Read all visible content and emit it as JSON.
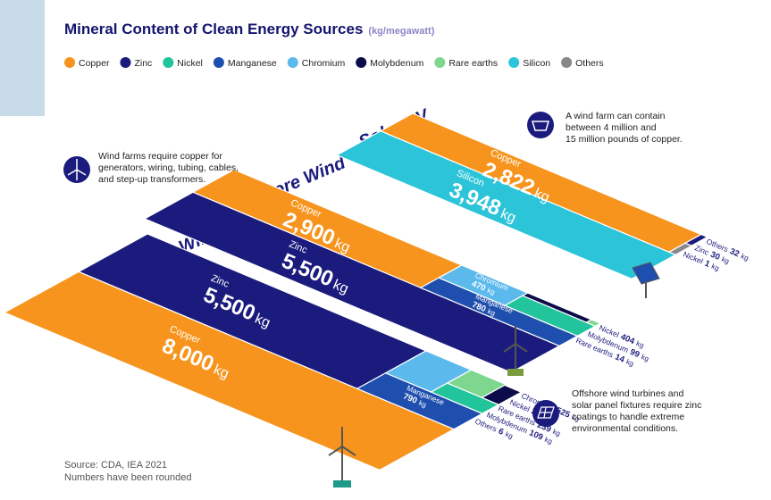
{
  "title": "Mineral Content of Clean Energy Sources",
  "unit": "(kg/megawatt)",
  "legend": [
    {
      "name": "Copper",
      "color": "#f7941d"
    },
    {
      "name": "Zinc",
      "color": "#1b1b7e"
    },
    {
      "name": "Nickel",
      "color": "#22c49c"
    },
    {
      "name": "Manganese",
      "color": "#1f4fae"
    },
    {
      "name": "Chromium",
      "color": "#5cb9ec"
    },
    {
      "name": "Molybdenum",
      "color": "#0c0c4a"
    },
    {
      "name": "Rare earths",
      "color": "#7fd68f"
    },
    {
      "name": "Silicon",
      "color": "#2bc4d8"
    },
    {
      "name": "Others",
      "color": "#888888"
    }
  ],
  "sources": [
    {
      "name": "Offshore Wind",
      "minerals": [
        {
          "name": "Copper",
          "value": 8000,
          "label": "8,000",
          "unit": "kg"
        },
        {
          "name": "Zinc",
          "value": 5500,
          "label": "5,500",
          "unit": "kg"
        },
        {
          "name": "Manganese",
          "value": 790,
          "unit": "kg"
        },
        {
          "name": "Chromium",
          "value": 525,
          "unit": "kg"
        },
        {
          "name": "Nickel",
          "value": 240,
          "unit": "kg"
        },
        {
          "name": "Rare earths",
          "value": 239,
          "unit": "kg"
        },
        {
          "name": "Molybdenum",
          "value": 109,
          "unit": "kg"
        },
        {
          "name": "Others",
          "value": 6,
          "unit": "kg"
        }
      ]
    },
    {
      "name": "Onshore Wind",
      "minerals": [
        {
          "name": "Zinc",
          "value": 5500,
          "label": "5,500",
          "unit": "kg"
        },
        {
          "name": "Copper",
          "value": 2900,
          "label": "2,900",
          "unit": "kg"
        },
        {
          "name": "Manganese",
          "value": 780,
          "unit": "kg"
        },
        {
          "name": "Chromium",
          "value": 470,
          "unit": "kg"
        },
        {
          "name": "Nickel",
          "value": 404,
          "unit": "kg"
        },
        {
          "name": "Molybdenum",
          "value": 99,
          "unit": "kg"
        },
        {
          "name": "Rare earths",
          "value": 14,
          "unit": "kg"
        }
      ]
    },
    {
      "name": "Solar PV",
      "minerals": [
        {
          "name": "Silicon",
          "value": 3948,
          "label": "3,948",
          "unit": "kg"
        },
        {
          "name": "Copper",
          "value": 2822,
          "label": "2,822",
          "unit": "kg"
        },
        {
          "name": "Others",
          "value": 32,
          "unit": "kg"
        },
        {
          "name": "Zinc",
          "value": 30,
          "unit": "kg"
        },
        {
          "name": "Nickel",
          "value": 1,
          "unit": "kg"
        }
      ]
    }
  ],
  "notes": [
    [
      "Wind farms require copper for",
      "generators, wiring, tubing, cables,",
      "and step-up transformers."
    ],
    [
      "A wind farm can contain",
      "between 4 million and",
      "15 million pounds of copper."
    ],
    [
      "Offshore wind turbines and",
      "solar panel fixtures require zinc",
      "coatings to handle extreme",
      "environmental conditions."
    ]
  ],
  "source": "Source: CDA, IEA 2021",
  "footnote": "Numbers have been rounded"
}
